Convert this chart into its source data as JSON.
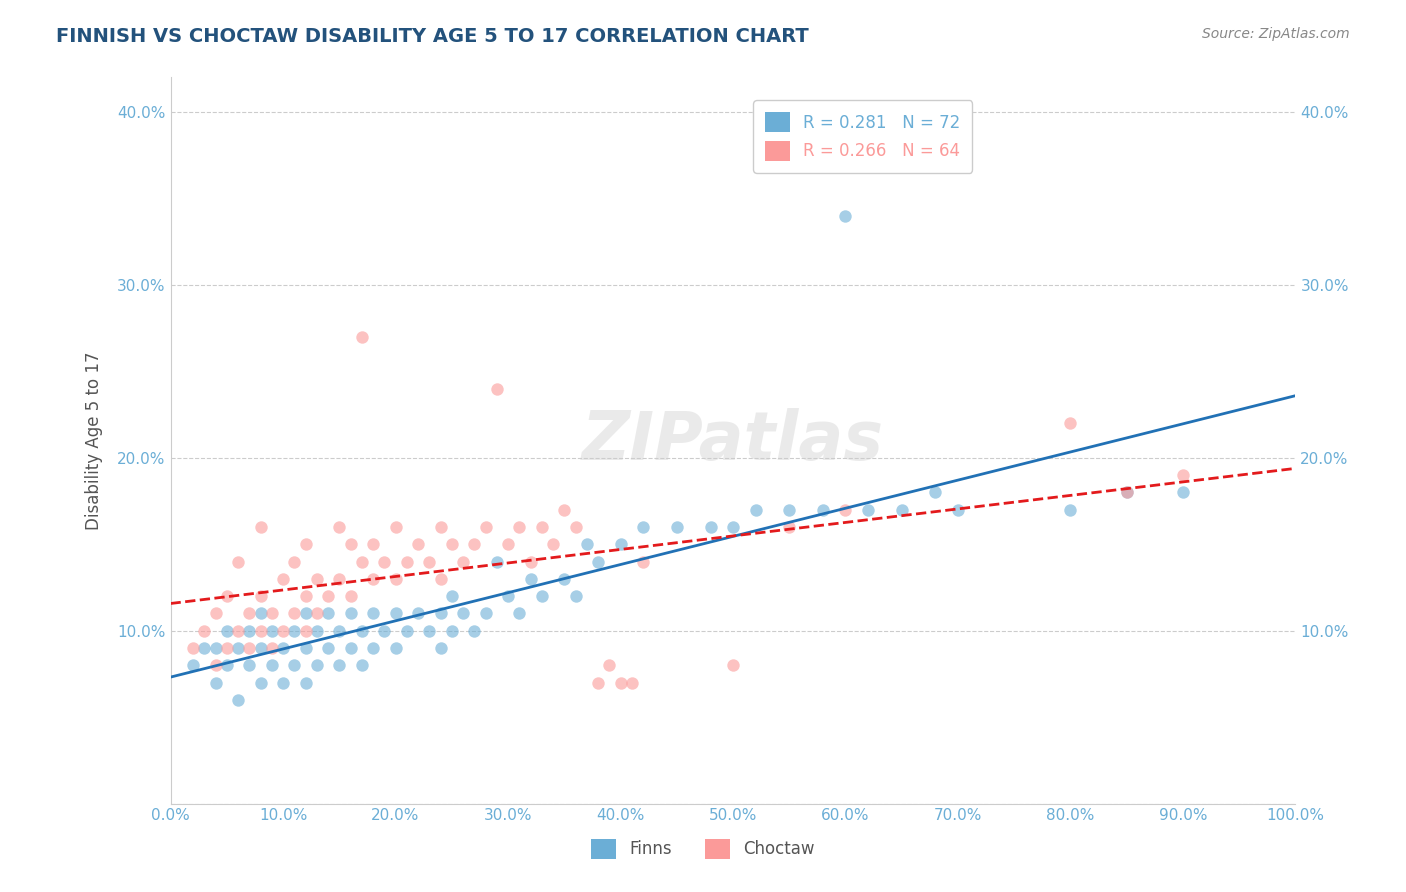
{
  "title": "FINNISH VS CHOCTAW DISABILITY AGE 5 TO 17 CORRELATION CHART",
  "source": "Source: ZipAtlas.com",
  "ylabel": "Disability Age 5 to 17",
  "xlabel": "",
  "xlim": [
    0.0,
    1.0
  ],
  "ylim": [
    0.0,
    0.42
  ],
  "xticks": [
    0.0,
    0.1,
    0.2,
    0.3,
    0.4,
    0.5,
    0.6,
    0.7,
    0.8,
    0.9,
    1.0
  ],
  "yticks": [
    0.0,
    0.1,
    0.2,
    0.3,
    0.4
  ],
  "xticklabels": [
    "0.0%",
    "10.0%",
    "20.0%",
    "30.0%",
    "40.0%",
    "50.0%",
    "60.0%",
    "70.0%",
    "80.0%",
    "90.0%",
    "100.0%"
  ],
  "yticklabels": [
    "",
    "10.0%",
    "20.0%",
    "30.0%",
    "40.0%"
  ],
  "legend_r_finns": "R = 0.281",
  "legend_n_finns": "N = 72",
  "legend_r_choctaw": "R = 0.266",
  "legend_n_choctaw": "N = 64",
  "finns_color": "#6baed6",
  "choctaw_color": "#fb9a99",
  "finns_line_color": "#2171b5",
  "choctaw_line_color": "#e31a1c",
  "watermark": "ZIPatlas",
  "title_color": "#23527c",
  "axis_label_color": "#555555",
  "tick_color": "#6baed6",
  "finns_scatter": [
    [
      0.02,
      0.08
    ],
    [
      0.03,
      0.09
    ],
    [
      0.04,
      0.07
    ],
    [
      0.04,
      0.09
    ],
    [
      0.05,
      0.08
    ],
    [
      0.05,
      0.1
    ],
    [
      0.06,
      0.06
    ],
    [
      0.06,
      0.09
    ],
    [
      0.07,
      0.08
    ],
    [
      0.07,
      0.1
    ],
    [
      0.08,
      0.07
    ],
    [
      0.08,
      0.09
    ],
    [
      0.08,
      0.11
    ],
    [
      0.09,
      0.08
    ],
    [
      0.09,
      0.1
    ],
    [
      0.1,
      0.07
    ],
    [
      0.1,
      0.09
    ],
    [
      0.11,
      0.08
    ],
    [
      0.11,
      0.1
    ],
    [
      0.12,
      0.07
    ],
    [
      0.12,
      0.09
    ],
    [
      0.12,
      0.11
    ],
    [
      0.13,
      0.08
    ],
    [
      0.13,
      0.1
    ],
    [
      0.14,
      0.09
    ],
    [
      0.14,
      0.11
    ],
    [
      0.15,
      0.08
    ],
    [
      0.15,
      0.1
    ],
    [
      0.16,
      0.09
    ],
    [
      0.16,
      0.11
    ],
    [
      0.17,
      0.08
    ],
    [
      0.17,
      0.1
    ],
    [
      0.18,
      0.09
    ],
    [
      0.18,
      0.11
    ],
    [
      0.19,
      0.1
    ],
    [
      0.2,
      0.09
    ],
    [
      0.2,
      0.11
    ],
    [
      0.21,
      0.1
    ],
    [
      0.22,
      0.11
    ],
    [
      0.23,
      0.1
    ],
    [
      0.24,
      0.09
    ],
    [
      0.24,
      0.11
    ],
    [
      0.25,
      0.1
    ],
    [
      0.25,
      0.12
    ],
    [
      0.26,
      0.11
    ],
    [
      0.27,
      0.1
    ],
    [
      0.28,
      0.11
    ],
    [
      0.29,
      0.14
    ],
    [
      0.3,
      0.12
    ],
    [
      0.31,
      0.11
    ],
    [
      0.32,
      0.13
    ],
    [
      0.33,
      0.12
    ],
    [
      0.35,
      0.13
    ],
    [
      0.36,
      0.12
    ],
    [
      0.37,
      0.15
    ],
    [
      0.38,
      0.14
    ],
    [
      0.4,
      0.15
    ],
    [
      0.42,
      0.16
    ],
    [
      0.45,
      0.16
    ],
    [
      0.48,
      0.16
    ],
    [
      0.5,
      0.16
    ],
    [
      0.52,
      0.17
    ],
    [
      0.55,
      0.17
    ],
    [
      0.58,
      0.17
    ],
    [
      0.6,
      0.34
    ],
    [
      0.62,
      0.17
    ],
    [
      0.65,
      0.17
    ],
    [
      0.68,
      0.18
    ],
    [
      0.7,
      0.17
    ],
    [
      0.8,
      0.17
    ],
    [
      0.85,
      0.18
    ],
    [
      0.9,
      0.18
    ]
  ],
  "choctaw_scatter": [
    [
      0.02,
      0.09
    ],
    [
      0.03,
      0.1
    ],
    [
      0.04,
      0.08
    ],
    [
      0.04,
      0.11
    ],
    [
      0.05,
      0.09
    ],
    [
      0.05,
      0.12
    ],
    [
      0.06,
      0.1
    ],
    [
      0.06,
      0.14
    ],
    [
      0.07,
      0.09
    ],
    [
      0.07,
      0.11
    ],
    [
      0.08,
      0.1
    ],
    [
      0.08,
      0.12
    ],
    [
      0.08,
      0.16
    ],
    [
      0.09,
      0.09
    ],
    [
      0.09,
      0.11
    ],
    [
      0.1,
      0.1
    ],
    [
      0.1,
      0.13
    ],
    [
      0.11,
      0.11
    ],
    [
      0.11,
      0.14
    ],
    [
      0.12,
      0.1
    ],
    [
      0.12,
      0.12
    ],
    [
      0.12,
      0.15
    ],
    [
      0.13,
      0.11
    ],
    [
      0.13,
      0.13
    ],
    [
      0.14,
      0.12
    ],
    [
      0.15,
      0.13
    ],
    [
      0.15,
      0.16
    ],
    [
      0.16,
      0.12
    ],
    [
      0.16,
      0.15
    ],
    [
      0.17,
      0.14
    ],
    [
      0.17,
      0.27
    ],
    [
      0.18,
      0.13
    ],
    [
      0.18,
      0.15
    ],
    [
      0.19,
      0.14
    ],
    [
      0.2,
      0.13
    ],
    [
      0.2,
      0.16
    ],
    [
      0.21,
      0.14
    ],
    [
      0.22,
      0.15
    ],
    [
      0.23,
      0.14
    ],
    [
      0.24,
      0.13
    ],
    [
      0.24,
      0.16
    ],
    [
      0.25,
      0.15
    ],
    [
      0.26,
      0.14
    ],
    [
      0.27,
      0.15
    ],
    [
      0.28,
      0.16
    ],
    [
      0.29,
      0.24
    ],
    [
      0.3,
      0.15
    ],
    [
      0.31,
      0.16
    ],
    [
      0.32,
      0.14
    ],
    [
      0.33,
      0.16
    ],
    [
      0.34,
      0.15
    ],
    [
      0.35,
      0.17
    ],
    [
      0.36,
      0.16
    ],
    [
      0.38,
      0.07
    ],
    [
      0.39,
      0.08
    ],
    [
      0.4,
      0.07
    ],
    [
      0.41,
      0.07
    ],
    [
      0.42,
      0.14
    ],
    [
      0.5,
      0.08
    ],
    [
      0.55,
      0.16
    ],
    [
      0.6,
      0.17
    ],
    [
      0.8,
      0.22
    ],
    [
      0.85,
      0.18
    ],
    [
      0.9,
      0.19
    ]
  ]
}
